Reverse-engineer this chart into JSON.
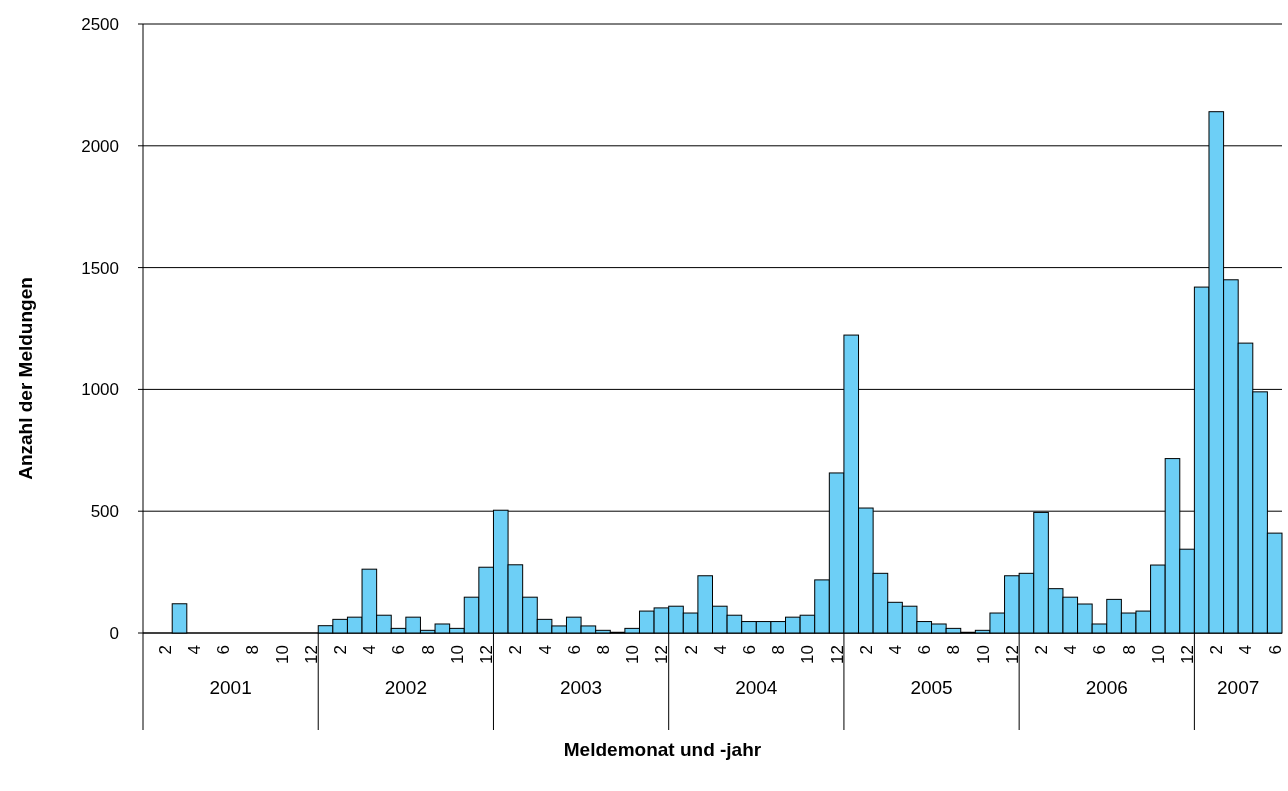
{
  "chart_data": {
    "type": "bar",
    "xlabel": "Meldemonat und -jahr",
    "ylabel": "Anzahl  der  Meldungen",
    "categories": [
      null,
      "2",
      null,
      "4",
      null,
      "6",
      null,
      "8",
      null,
      "10",
      null,
      "12",
      null,
      "2",
      null,
      "4",
      null,
      "6",
      null,
      "8",
      null,
      "10",
      null,
      "12",
      null,
      "2",
      null,
      "4",
      null,
      "6",
      null,
      "8",
      null,
      "10",
      null,
      "12",
      null,
      "2",
      null,
      "4",
      null,
      "6",
      null,
      "8",
      null,
      "10",
      null,
      "12",
      null,
      "2",
      null,
      "4",
      null,
      "6",
      null,
      "8",
      null,
      "10",
      null,
      "12",
      null,
      "2",
      null,
      "4",
      null,
      "6",
      null,
      "8",
      null,
      "10",
      null,
      "12",
      null,
      "2",
      null,
      "4",
      null,
      "6"
    ],
    "values": [
      0,
      0,
      120,
      0,
      0,
      0,
      0,
      0,
      0,
      0,
      0,
      0,
      30,
      56,
      65,
      262,
      73,
      19,
      65,
      11,
      37,
      19,
      147,
      270,
      504,
      280,
      147,
      56,
      29,
      65,
      29,
      11,
      3,
      19,
      90,
      103,
      110,
      82,
      235,
      110,
      73,
      47,
      47,
      47,
      65,
      73,
      218,
      657,
      1223,
      513,
      245,
      126,
      110,
      47,
      37,
      19,
      3,
      11,
      82,
      235,
      245,
      495,
      182,
      147,
      119,
      37,
      138,
      82,
      90,
      279,
      716,
      344,
      1420,
      2140,
      1450,
      1190,
      990,
      410
    ],
    "color": "#6dcff6",
    "ylim": [
      0,
      2500
    ],
    "yticks": [
      0,
      500,
      1000,
      1500,
      2000,
      2500
    ],
    "grid": "y",
    "annotations": [
      "2001",
      "2002",
      "2003",
      "2004",
      "2005",
      "2006",
      "2007"
    ]
  }
}
